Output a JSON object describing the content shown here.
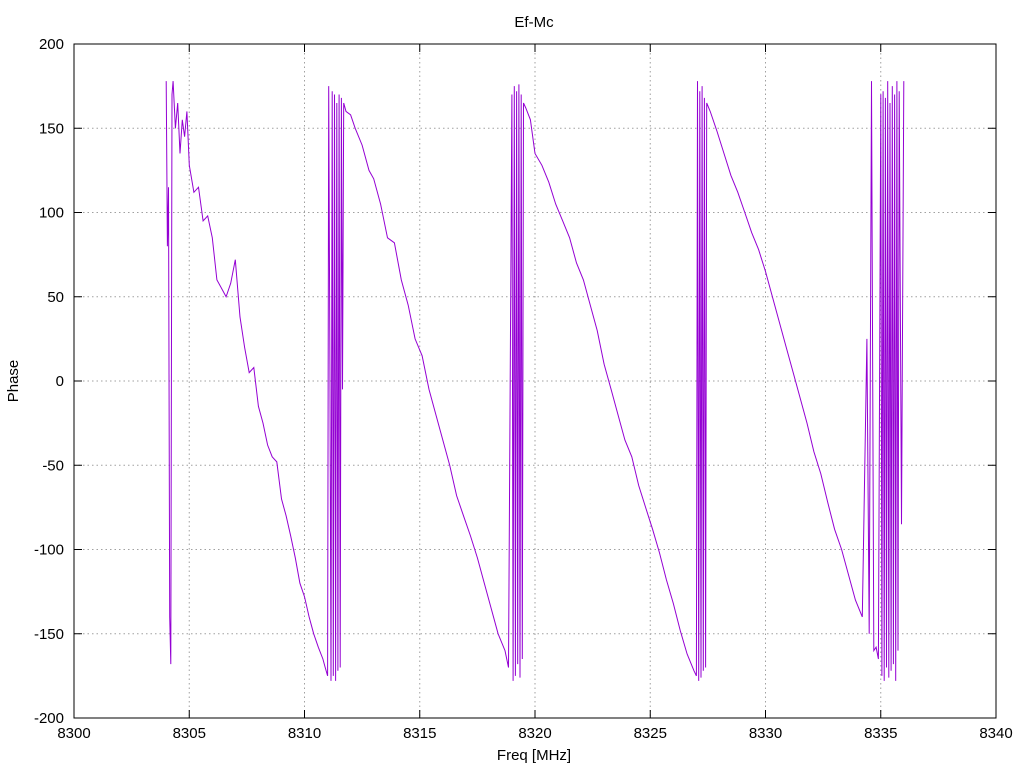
{
  "chart_data": {
    "type": "line",
    "title": "Ef-Mc",
    "xlabel": "Freq [MHz]",
    "ylabel": "Phase",
    "xlim": [
      8300,
      8340
    ],
    "ylim": [
      -200,
      200
    ],
    "x_ticks": [
      "8300",
      "8305",
      "8310",
      "8315",
      "8320",
      "8325",
      "8330",
      "8335",
      "8340"
    ],
    "y_ticks": [
      "200",
      "150",
      "100",
      "50",
      "0",
      "-50",
      "-100",
      "-150",
      "-200"
    ],
    "grid": true,
    "legend": "none",
    "series": [
      {
        "color": "#9400D3",
        "points": [
          [
            8304.0,
            178
          ],
          [
            8304.05,
            80
          ],
          [
            8304.1,
            115
          ],
          [
            8304.15,
            -140
          ],
          [
            8304.2,
            -168
          ],
          [
            8304.25,
            170
          ],
          [
            8304.3,
            178
          ],
          [
            8304.4,
            150
          ],
          [
            8304.5,
            165
          ],
          [
            8304.6,
            135
          ],
          [
            8304.7,
            155
          ],
          [
            8304.8,
            145
          ],
          [
            8304.9,
            160
          ],
          [
            8305.0,
            128
          ],
          [
            8305.2,
            112
          ],
          [
            8305.4,
            115
          ],
          [
            8305.6,
            95
          ],
          [
            8305.8,
            98
          ],
          [
            8306.0,
            85
          ],
          [
            8306.2,
            60
          ],
          [
            8306.4,
            55
          ],
          [
            8306.6,
            50
          ],
          [
            8306.8,
            58
          ],
          [
            8307.0,
            72
          ],
          [
            8307.2,
            38
          ],
          [
            8307.4,
            20
          ],
          [
            8307.6,
            5
          ],
          [
            8307.8,
            8
          ],
          [
            8308.0,
            -15
          ],
          [
            8308.2,
            -25
          ],
          [
            8308.4,
            -38
          ],
          [
            8308.6,
            -45
          ],
          [
            8308.8,
            -48
          ],
          [
            8309.0,
            -70
          ],
          [
            8309.2,
            -80
          ],
          [
            8309.4,
            -92
          ],
          [
            8309.6,
            -105
          ],
          [
            8309.8,
            -120
          ],
          [
            8310.0,
            -128
          ],
          [
            8310.2,
            -140
          ],
          [
            8310.4,
            -150
          ],
          [
            8310.6,
            -158
          ],
          [
            8310.8,
            -165
          ],
          [
            8310.9,
            -170
          ],
          [
            8311.0,
            -175
          ],
          [
            8311.05,
            175
          ],
          [
            8311.1,
            10
          ],
          [
            8311.15,
            -178
          ],
          [
            8311.2,
            172
          ],
          [
            8311.25,
            -175
          ],
          [
            8311.3,
            170
          ],
          [
            8311.35,
            -178
          ],
          [
            8311.4,
            165
          ],
          [
            8311.45,
            -172
          ],
          [
            8311.5,
            170
          ],
          [
            8311.55,
            -170
          ],
          [
            8311.6,
            168
          ],
          [
            8311.65,
            -5
          ],
          [
            8311.7,
            165
          ],
          [
            8311.8,
            160
          ],
          [
            8312.0,
            158
          ],
          [
            8312.2,
            150
          ],
          [
            8312.5,
            140
          ],
          [
            8312.8,
            125
          ],
          [
            8313.0,
            120
          ],
          [
            8313.3,
            105
          ],
          [
            8313.6,
            85
          ],
          [
            8313.9,
            82
          ],
          [
            8314.2,
            60
          ],
          [
            8314.5,
            45
          ],
          [
            8314.8,
            25
          ],
          [
            8315.1,
            15
          ],
          [
            8315.4,
            -5
          ],
          [
            8315.7,
            -20
          ],
          [
            8316.0,
            -35
          ],
          [
            8316.3,
            -50
          ],
          [
            8316.6,
            -68
          ],
          [
            8316.9,
            -80
          ],
          [
            8317.2,
            -92
          ],
          [
            8317.5,
            -105
          ],
          [
            8317.8,
            -120
          ],
          [
            8318.1,
            -135
          ],
          [
            8318.4,
            -150
          ],
          [
            8318.7,
            -160
          ],
          [
            8318.85,
            -170
          ],
          [
            8319.0,
            170
          ],
          [
            8319.05,
            -178
          ],
          [
            8319.1,
            175
          ],
          [
            8319.15,
            -175
          ],
          [
            8319.2,
            172
          ],
          [
            8319.25,
            -168
          ],
          [
            8319.3,
            176
          ],
          [
            8319.35,
            -176
          ],
          [
            8319.4,
            170
          ],
          [
            8319.45,
            -165
          ],
          [
            8319.5,
            165
          ],
          [
            8319.6,
            162
          ],
          [
            8319.8,
            155
          ],
          [
            8320.0,
            135
          ],
          [
            8320.3,
            128
          ],
          [
            8320.6,
            118
          ],
          [
            8320.9,
            105
          ],
          [
            8321.2,
            95
          ],
          [
            8321.5,
            85
          ],
          [
            8321.8,
            70
          ],
          [
            8322.1,
            60
          ],
          [
            8322.4,
            45
          ],
          [
            8322.7,
            30
          ],
          [
            8323.0,
            10
          ],
          [
            8323.3,
            -5
          ],
          [
            8323.6,
            -20
          ],
          [
            8323.9,
            -35
          ],
          [
            8324.2,
            -45
          ],
          [
            8324.5,
            -62
          ],
          [
            8324.8,
            -75
          ],
          [
            8325.1,
            -88
          ],
          [
            8325.4,
            -102
          ],
          [
            8325.7,
            -118
          ],
          [
            8326.0,
            -132
          ],
          [
            8326.3,
            -148
          ],
          [
            8326.6,
            -162
          ],
          [
            8326.9,
            -172
          ],
          [
            8327.0,
            -175
          ],
          [
            8327.05,
            178
          ],
          [
            8327.1,
            -178
          ],
          [
            8327.15,
            172
          ],
          [
            8327.2,
            -176
          ],
          [
            8327.25,
            175
          ],
          [
            8327.3,
            -172
          ],
          [
            8327.35,
            168
          ],
          [
            8327.4,
            -170
          ],
          [
            8327.45,
            165
          ],
          [
            8327.6,
            160
          ],
          [
            8327.9,
            148
          ],
          [
            8328.2,
            135
          ],
          [
            8328.5,
            122
          ],
          [
            8328.8,
            112
          ],
          [
            8329.1,
            100
          ],
          [
            8329.4,
            88
          ],
          [
            8329.7,
            78
          ],
          [
            8330.0,
            65
          ],
          [
            8330.3,
            50
          ],
          [
            8330.6,
            35
          ],
          [
            8330.9,
            20
          ],
          [
            8331.2,
            5
          ],
          [
            8331.5,
            -10
          ],
          [
            8331.8,
            -25
          ],
          [
            8332.1,
            -42
          ],
          [
            8332.4,
            -55
          ],
          [
            8332.7,
            -72
          ],
          [
            8333.0,
            -88
          ],
          [
            8333.3,
            -100
          ],
          [
            8333.6,
            -115
          ],
          [
            8333.9,
            -130
          ],
          [
            8334.2,
            -140
          ],
          [
            8334.4,
            25
          ],
          [
            8334.5,
            -150
          ],
          [
            8334.6,
            178
          ],
          [
            8334.7,
            -160
          ],
          [
            8334.8,
            -158
          ],
          [
            8334.9,
            -165
          ],
          [
            8335.0,
            170
          ],
          [
            8335.05,
            -175
          ],
          [
            8335.1,
            172
          ],
          [
            8335.15,
            -178
          ],
          [
            8335.2,
            168
          ],
          [
            8335.25,
            -170
          ],
          [
            8335.3,
            178
          ],
          [
            8335.35,
            -176
          ],
          [
            8335.4,
            165
          ],
          [
            8335.45,
            -172
          ],
          [
            8335.5,
            175
          ],
          [
            8335.55,
            -168
          ],
          [
            8335.6,
            170
          ],
          [
            8335.65,
            -178
          ],
          [
            8335.7,
            178
          ],
          [
            8335.75,
            -160
          ],
          [
            8335.8,
            172
          ],
          [
            8335.9,
            -85
          ],
          [
            8336.0,
            178
          ]
        ]
      }
    ]
  }
}
